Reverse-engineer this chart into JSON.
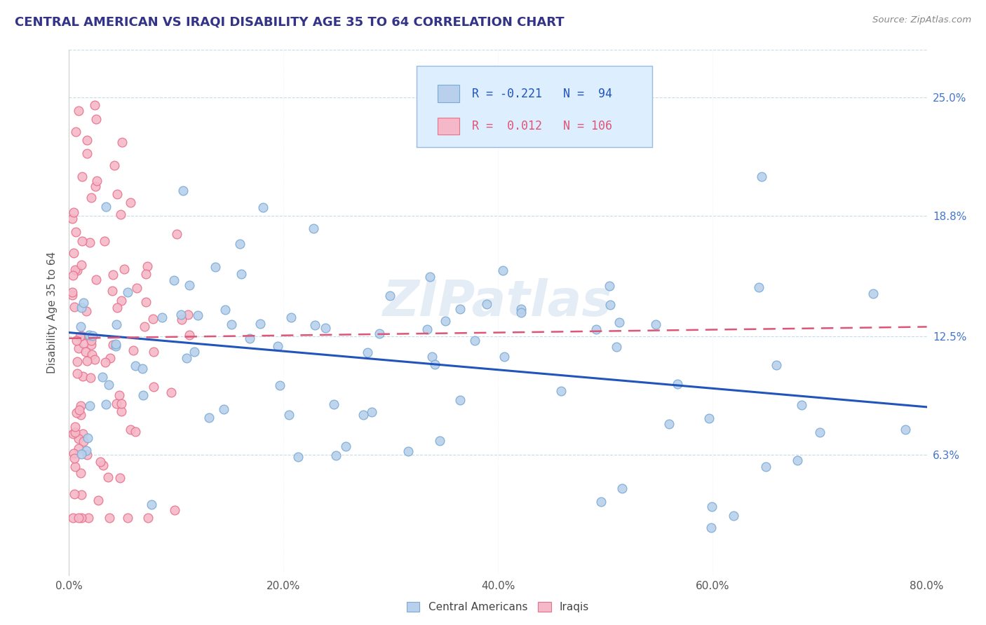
{
  "title": "CENTRAL AMERICAN VS IRAQI DISABILITY AGE 35 TO 64 CORRELATION CHART",
  "source": "Source: ZipAtlas.com",
  "ylabel": "Disability Age 35 to 64",
  "xlim": [
    0.0,
    0.8
  ],
  "ylim": [
    0.0,
    0.275
  ],
  "xtick_labels": [
    "0.0%",
    "20.0%",
    "40.0%",
    "60.0%",
    "80.0%"
  ],
  "xtick_vals": [
    0.0,
    0.2,
    0.4,
    0.6,
    0.8
  ],
  "ytick_labels": [
    "6.3%",
    "12.5%",
    "18.8%",
    "25.0%"
  ],
  "ytick_vals": [
    0.063,
    0.125,
    0.188,
    0.25
  ],
  "blue_R": -0.221,
  "blue_N": 94,
  "pink_R": 0.012,
  "pink_N": 106,
  "blue_scatter_color": "#b8d0eb",
  "blue_edge_color": "#7baad4",
  "pink_scatter_color": "#f4b8c8",
  "pink_edge_color": "#e8708a",
  "blue_line_color": "#2255bb",
  "pink_line_color": "#dd5577",
  "legend_box_color": "#ddeeff",
  "legend_edge_color": "#99bbdd",
  "watermark": "ZIPatlas",
  "title_color": "#333388",
  "source_color": "#888888",
  "grid_color": "#c8dce8",
  "right_tick_color": "#4477cc",
  "ylabel_color": "#555555",
  "xtick_color": "#555555"
}
